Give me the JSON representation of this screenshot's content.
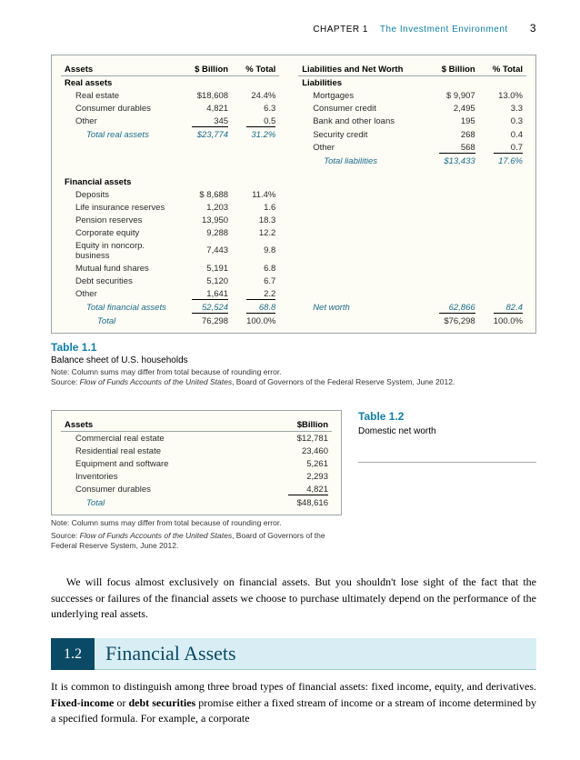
{
  "header": {
    "chapter": "CHAPTER 1",
    "title": "The Investment Environment",
    "page": "3"
  },
  "t1": {
    "cols": {
      "assets": "Assets",
      "bil": "$ Billion",
      "pct": "% Total",
      "liab": "Liabilities and Net Worth",
      "bil2": "$ Billion",
      "pct2": "% Total"
    },
    "real_label": "Real assets",
    "real_rows": [
      {
        "n": "Real estate",
        "b": "$18,608",
        "p": "24.4%"
      },
      {
        "n": "Consumer durables",
        "b": "4,821",
        "p": "6.3"
      },
      {
        "n": "Other",
        "b": "345",
        "p": "0.5",
        "ul": true
      }
    ],
    "real_total": {
      "n": "Total real assets",
      "b": "$23,774",
      "p": "31.2%"
    },
    "liab_label": "Liabilities",
    "liab_rows": [
      {
        "n": "Mortgages",
        "b": "$  9,907",
        "p": "13.0%"
      },
      {
        "n": "Consumer credit",
        "b": "2,495",
        "p": "3.3"
      },
      {
        "n": "Bank and other loans",
        "b": "195",
        "p": "0.3"
      },
      {
        "n": "Security credit",
        "b": "268",
        "p": "0.4"
      },
      {
        "n": "Other",
        "b": "568",
        "p": "0.7",
        "ul": true
      }
    ],
    "liab_total": {
      "n": "Total liabilities",
      "b": "$13,433",
      "p": "17.6%"
    },
    "fin_label": "Financial assets",
    "fin_rows": [
      {
        "n": "Deposits",
        "b": "$  8,688",
        "p": "11.4%"
      },
      {
        "n": "Life insurance reserves",
        "b": "1,203",
        "p": "1.6"
      },
      {
        "n": "Pension reserves",
        "b": "13,950",
        "p": "18.3"
      },
      {
        "n": "Corporate equity",
        "b": "9,288",
        "p": "12.2"
      },
      {
        "n": "Equity in noncorp. business",
        "b": "7,443",
        "p": "9.8"
      },
      {
        "n": "Mutual fund shares",
        "b": "5,191",
        "p": "6.8"
      },
      {
        "n": "Debt securities",
        "b": "5,120",
        "p": "6.7"
      },
      {
        "n": "Other",
        "b": "1,641",
        "p": "2.2",
        "ul": true
      }
    ],
    "fin_total": {
      "n": "Total financial assets",
      "b": "52,524",
      "p": "68.8"
    },
    "net_worth": {
      "n": "Net worth",
      "b": "62,866",
      "p": "82.4"
    },
    "grand_total": {
      "n": "Total",
      "b": "76,298",
      "p": "100.0%",
      "b2": "$76,298",
      "p2": "100.0%"
    },
    "cap_num": "Table 1.1",
    "cap_title": "Balance sheet of U.S. households",
    "cap_note": "Note: Column sums may differ from total because of rounding error.",
    "cap_src_prefix": "Source: ",
    "cap_src_it": "Flow of Funds Accounts of the United States",
    "cap_src_tail": ", Board of Governors of the Federal Reserve System, June 2012."
  },
  "t2": {
    "cols": {
      "assets": "Assets",
      "bil": "$Billion"
    },
    "rows": [
      {
        "n": "Commercial real estate",
        "b": "$12,781"
      },
      {
        "n": "Residential real estate",
        "b": "23,460"
      },
      {
        "n": "Equipment and software",
        "b": "5,261"
      },
      {
        "n": "Inventories",
        "b": "2,293"
      },
      {
        "n": "Consumer durables",
        "b": "4,821",
        "ul": true
      }
    ],
    "total": {
      "n": "Total",
      "b": "$48,616"
    },
    "note": "Note: Column sums may differ from total because of rounding error.",
    "src_prefix": "Source: ",
    "src_it": "Flow of Funds Accounts of the United States",
    "src_tail": ", Board of Governors of the Federal Reserve System, June 2012.",
    "cap_num": "Table 1.2",
    "cap_title": "Domestic net worth"
  },
  "para1": "We will focus almost exclusively on financial assets. But you shouldn't lose sight of the fact that the successes or failures of the financial assets we choose to purchase ultimately depend on the performance of the underlying real assets.",
  "section": {
    "num": "1.2",
    "title": "Financial Assets"
  },
  "para2_a": "It is common to distinguish among three broad types of financial assets: fixed income, equity, and derivatives. ",
  "para2_bold": "Fixed-income",
  "para2_mid": " or ",
  "para2_bold2": "debt securities",
  "para2_b": " promise either a fixed stream of income or a stream of income determined by a specified formula. For example, a corporate"
}
